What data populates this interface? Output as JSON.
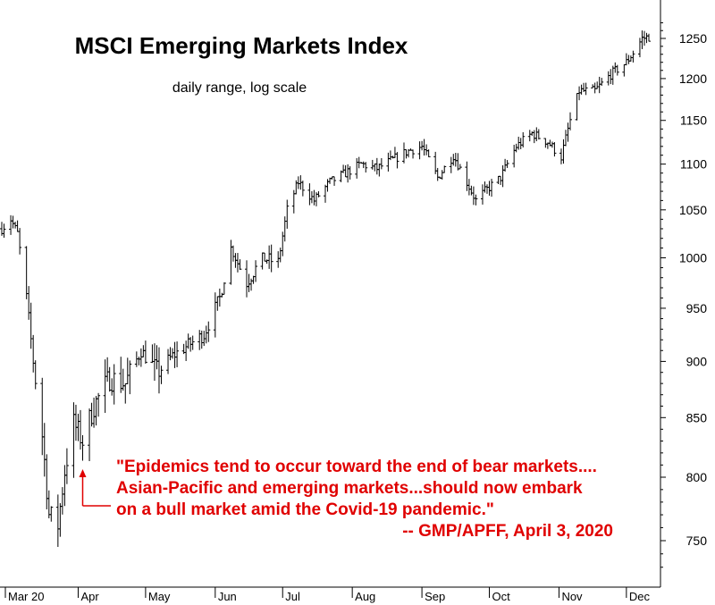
{
  "chart_data": {
    "type": "ohlc",
    "title": "MSCI Emerging Markets Index",
    "subtitle": "daily range, log scale",
    "y_scale": "log",
    "ylim": [
      725,
      1275
    ],
    "y_ticks": [
      750,
      800,
      850,
      900,
      950,
      1000,
      1050,
      1100,
      1150,
      1200,
      1250
    ],
    "x_ticks": [
      "Mar 20",
      "Apr",
      "May",
      "Jun",
      "Jul",
      "Aug",
      "Sep",
      "Oct",
      "Nov",
      "Dec"
    ],
    "grid": false,
    "legend": "none",
    "bar_color": "#000000",
    "annotation_color": "#e00000",
    "annotation": {
      "lines": [
        "\"Epidemics tend to occur toward the end of bear markets....",
        "Asian-Pacific and emerging markets...should now embark",
        "on a bull market amid the Covid-19 pandemic.\"",
        "-- GMP/APFF, April 3, 2020"
      ],
      "point_date": "2020-04-03",
      "point_value": 830
    },
    "daily_close": [
      {
        "date": "2020-02-27",
        "close": 1030
      },
      {
        "date": "2020-03-02",
        "close": 1040
      },
      {
        "date": "2020-03-05",
        "close": 1025
      },
      {
        "date": "2020-03-09",
        "close": 960
      },
      {
        "date": "2020-03-12",
        "close": 900
      },
      {
        "date": "2020-03-16",
        "close": 835
      },
      {
        "date": "2020-03-19",
        "close": 770
      },
      {
        "date": "2020-03-23",
        "close": 762
      },
      {
        "date": "2020-03-26",
        "close": 805
      },
      {
        "date": "2020-03-30",
        "close": 845
      },
      {
        "date": "2020-04-03",
        "close": 830
      },
      {
        "date": "2020-04-08",
        "close": 860
      },
      {
        "date": "2020-04-15",
        "close": 885
      },
      {
        "date": "2020-04-22",
        "close": 880
      },
      {
        "date": "2020-04-29",
        "close": 910
      },
      {
        "date": "2020-05-06",
        "close": 890
      },
      {
        "date": "2020-05-13",
        "close": 905
      },
      {
        "date": "2020-05-20",
        "close": 915
      },
      {
        "date": "2020-05-27",
        "close": 925
      },
      {
        "date": "2020-06-03",
        "close": 960
      },
      {
        "date": "2020-06-08",
        "close": 1010
      },
      {
        "date": "2020-06-15",
        "close": 975
      },
      {
        "date": "2020-06-22",
        "close": 1000
      },
      {
        "date": "2020-06-29",
        "close": 995
      },
      {
        "date": "2020-07-03",
        "close": 1050
      },
      {
        "date": "2020-07-08",
        "close": 1080
      },
      {
        "date": "2020-07-15",
        "close": 1060
      },
      {
        "date": "2020-07-22",
        "close": 1080
      },
      {
        "date": "2020-07-29",
        "close": 1090
      },
      {
        "date": "2020-08-05",
        "close": 1100
      },
      {
        "date": "2020-08-12",
        "close": 1095
      },
      {
        "date": "2020-08-19",
        "close": 1105
      },
      {
        "date": "2020-08-26",
        "close": 1115
      },
      {
        "date": "2020-09-01",
        "close": 1120
      },
      {
        "date": "2020-09-08",
        "close": 1085
      },
      {
        "date": "2020-09-15",
        "close": 1110
      },
      {
        "date": "2020-09-22",
        "close": 1075
      },
      {
        "date": "2020-09-25",
        "close": 1060
      },
      {
        "date": "2020-09-29",
        "close": 1070
      },
      {
        "date": "2020-10-06",
        "close": 1085
      },
      {
        "date": "2020-10-13",
        "close": 1120
      },
      {
        "date": "2020-10-20",
        "close": 1135
      },
      {
        "date": "2020-10-27",
        "close": 1125
      },
      {
        "date": "2020-11-02",
        "close": 1108
      },
      {
        "date": "2020-11-06",
        "close": 1150
      },
      {
        "date": "2020-11-10",
        "close": 1185
      },
      {
        "date": "2020-11-17",
        "close": 1185
      },
      {
        "date": "2020-11-24",
        "close": 1205
      },
      {
        "date": "2020-12-01",
        "close": 1220
      },
      {
        "date": "2020-12-04",
        "close": 1232
      },
      {
        "date": "2020-12-08",
        "close": 1250
      },
      {
        "date": "2020-12-11",
        "close": 1252
      }
    ]
  }
}
